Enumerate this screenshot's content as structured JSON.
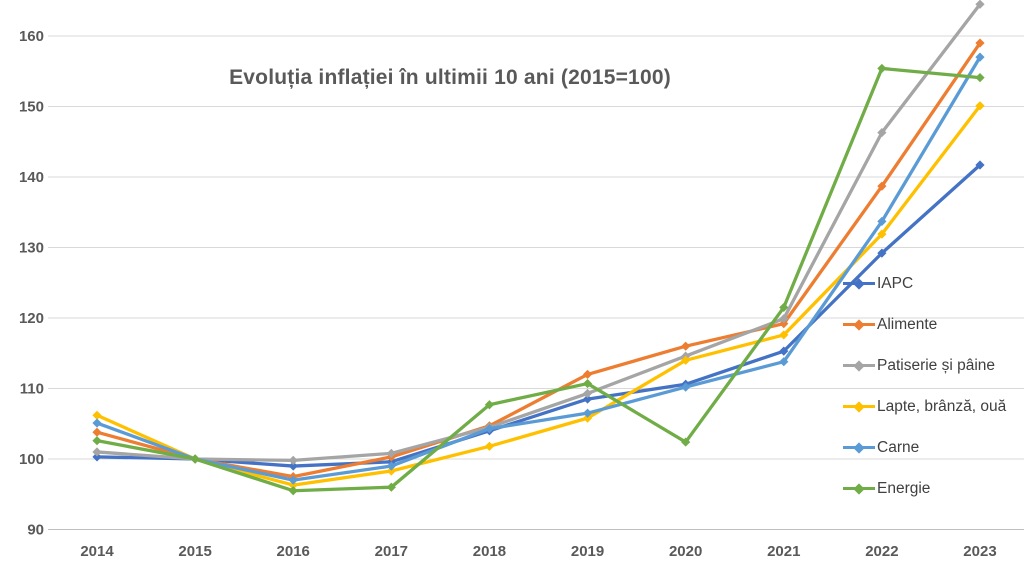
{
  "title": "Evoluția inflației în ultimii 10 ani (2015=100)",
  "chart_data": {
    "type": "line",
    "title": "Evoluția inflației în ultimii 10 ani (2015=100)",
    "x": [
      "2014",
      "2015",
      "2016",
      "2017",
      "2018",
      "2019",
      "2020",
      "2021",
      "2022",
      "2023"
    ],
    "y_ticks": [
      90,
      100,
      110,
      120,
      130,
      140,
      150,
      160
    ],
    "ylim": [
      90,
      165
    ],
    "grid": "horizontal",
    "legend_position": "right",
    "marker": "diamond",
    "series": [
      {
        "name": "IAPC",
        "color": "#4472C4",
        "values": [
          100.3,
          100,
          99.0,
          99.6,
          104.0,
          108.5,
          110.6,
          115.3,
          129.2,
          141.7
        ]
      },
      {
        "name": "Alimente",
        "color": "#ED7D31",
        "values": [
          103.8,
          100,
          97.5,
          100.3,
          104.7,
          112.0,
          116.0,
          119.2,
          138.7,
          159.0
        ]
      },
      {
        "name": "Patiserie și pâine",
        "color": "#A5A5A5",
        "values": [
          101.0,
          100,
          99.8,
          100.8,
          104.5,
          109.3,
          114.6,
          119.9,
          146.3,
          164.5
        ]
      },
      {
        "name": "Lapte, brânză, ouă",
        "color": "#FFC000",
        "values": [
          106.2,
          100,
          96.3,
          98.3,
          101.8,
          105.8,
          114.0,
          117.6,
          131.9,
          150.1
        ]
      },
      {
        "name": "Carne",
        "color": "#5B9BD5",
        "values": [
          105.1,
          100,
          97.0,
          99.0,
          104.3,
          106.5,
          110.2,
          113.8,
          133.7,
          157.0
        ]
      },
      {
        "name": "Energie",
        "color": "#70AD47",
        "values": [
          102.6,
          100,
          95.5,
          96.0,
          107.7,
          110.7,
          102.4,
          121.5,
          155.4,
          154.1
        ]
      }
    ],
    "axis_text_color": "#595959",
    "gridline_color": "#D9D9D9",
    "baseline_color": "#BFBFBF"
  }
}
